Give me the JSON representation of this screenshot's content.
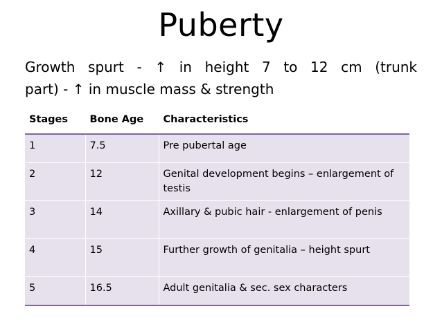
{
  "slide": {
    "title": "Puberty",
    "intro_line1": "Growth spurt - ↑ in height 7 to 12 cm (trunk",
    "intro_line2": "part) - ↑ in muscle mass & strength"
  },
  "table": {
    "headers": [
      "Stages",
      "Bone Age",
      "Characteristics"
    ],
    "rows": [
      {
        "stage": "1",
        "bone_age": "7.5",
        "characteristics": "Pre pubertal age"
      },
      {
        "stage": "2",
        "bone_age": "12",
        "characteristics": "Genital development begins – enlargement of testis"
      },
      {
        "stage": "3",
        "bone_age": "14",
        "characteristics": "Axillary & pubic hair - enlargement of penis"
      },
      {
        "stage": "4",
        "bone_age": "15",
        "characteristics": "Further growth of genitalia – height spurt"
      },
      {
        "stage": "5",
        "bone_age": "16.5",
        "characteristics": "Adult genitalia & sec. sex characters"
      }
    ]
  },
  "colors": {
    "row_fill": "#e7e1ee",
    "rule": "#8062a6"
  }
}
